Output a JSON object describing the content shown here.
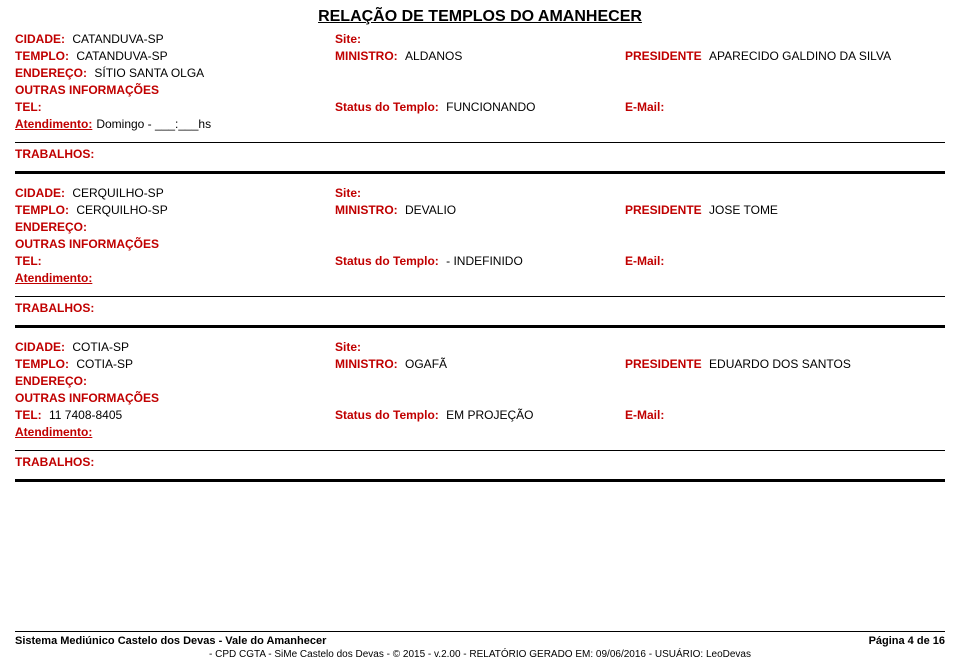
{
  "page": {
    "title": "RELAÇÃO DE TEMPLOS DO AMANHECER"
  },
  "labels": {
    "cidade": "CIDADE:",
    "templo": "TEMPLO:",
    "endereco": "ENDEREÇO:",
    "outras": "OUTRAS INFORMAÇÕES",
    "tel": "TEL:",
    "atendimento": "Atendimento:",
    "site": "Site:",
    "ministro": "MINISTRO:",
    "status": "Status do Templo:",
    "presidente": "PRESIDENTE",
    "email": "E-Mail:",
    "trabalhos": "TRABALHOS:"
  },
  "records": [
    {
      "cidade": "CATANDUVA-SP",
      "templo": "CATANDUVA-SP",
      "endereco": "SÍTIO SANTA OLGA",
      "tel": "",
      "atendimento": "Domingo - ___:___hs",
      "ministro": "ALDANOS",
      "status": "FUNCIONANDO",
      "presidente": "APARECIDO GALDINO DA SILVA"
    },
    {
      "cidade": "CERQUILHO-SP",
      "templo": "CERQUILHO-SP",
      "endereco": "",
      "tel": "",
      "atendimento": "",
      "ministro": "DEVALIO",
      "status": "- INDEFINIDO",
      "presidente": "JOSE TOME"
    },
    {
      "cidade": "COTIA-SP",
      "templo": "COTIA-SP",
      "endereco": "",
      "tel": "11 7408-8405",
      "atendimento": "",
      "ministro": "OGAFÃ",
      "status": "EM PROJEÇÃO",
      "presidente": "EDUARDO DOS SANTOS"
    }
  ],
  "footer": {
    "left": "Sistema Mediúnico Castelo dos Devas - Vale do Amanhecer",
    "right": "Página 4 de 16",
    "sub": "- CPD CGTA - SiMe Castelo dos Devas - © 2015 - v.2.00 - RELATÓRIO GERADO EM: 09/06/2016 - USUÁRIO: LeoDevas"
  }
}
